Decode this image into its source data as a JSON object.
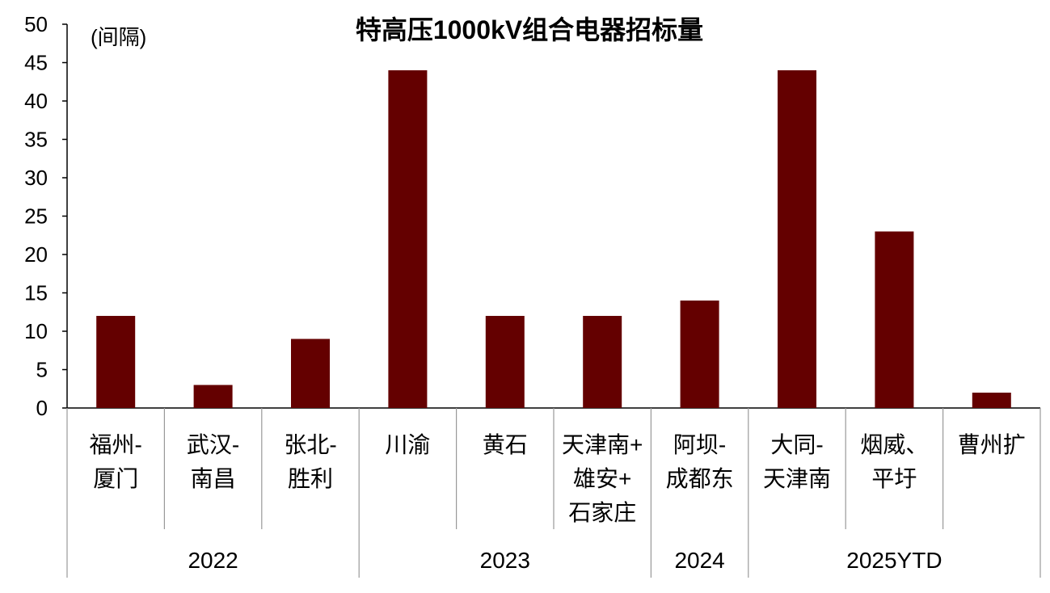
{
  "chart_data": {
    "type": "bar",
    "title": "特高压1000kV组合电器招标量",
    "ylabel": "(间隔)",
    "xlabel": "",
    "ylim": [
      0,
      50
    ],
    "yticks": [
      0,
      5,
      10,
      15,
      20,
      25,
      30,
      35,
      40,
      45,
      50
    ],
    "grid": false,
    "bar_color": "#640000",
    "categories": [
      [
        "福州-",
        "厦门"
      ],
      [
        "武汉-",
        "南昌"
      ],
      [
        "张北-",
        "胜利"
      ],
      [
        "川渝"
      ],
      [
        "黄石"
      ],
      [
        "天津南+",
        "雄安+",
        "石家庄"
      ],
      [
        "阿坝-",
        "成都东"
      ],
      [
        "大同-",
        "天津南"
      ],
      [
        "烟威、",
        "平圩"
      ],
      [
        "曹州扩"
      ]
    ],
    "values": [
      12,
      3,
      9,
      44,
      12,
      12,
      14,
      44,
      23,
      2
    ],
    "groups": [
      {
        "label": "2022",
        "count": 3
      },
      {
        "label": "2023",
        "count": 3
      },
      {
        "label": "2024",
        "count": 1
      },
      {
        "label": "2025YTD",
        "count": 3
      }
    ]
  }
}
